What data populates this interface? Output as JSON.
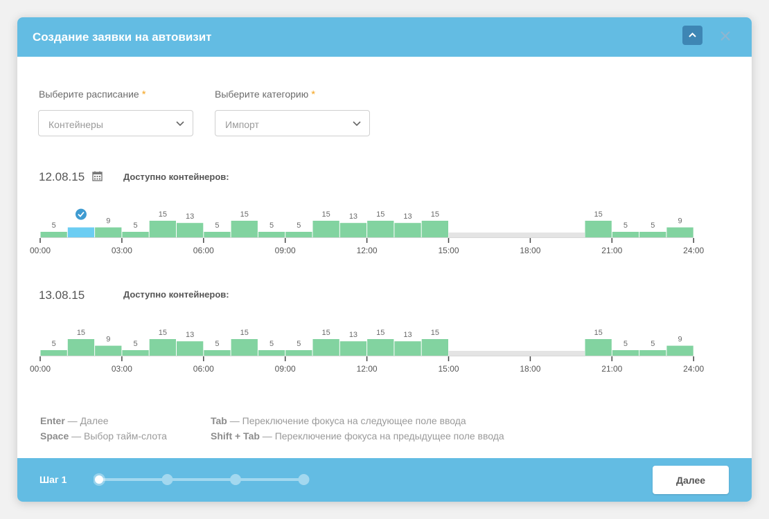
{
  "header": {
    "title": "Создание заявки на автовизит"
  },
  "form": {
    "schedule": {
      "label": "Выберите расписание",
      "required_mark": "*",
      "value": "Контейнеры"
    },
    "category": {
      "label": "Выберите категорию",
      "required_mark": "*",
      "value": "Импорт"
    }
  },
  "days": [
    {
      "date": "12.08.15",
      "available_label": "Доступно контейнеров:",
      "show_calendar": true
    },
    {
      "date": "13.08.15",
      "available_label": "Доступно контейнеров:",
      "show_calendar": false
    }
  ],
  "chart_data": [
    {
      "type": "bar",
      "title": "12.08.15",
      "xlabel": "Доступно контейнеров:",
      "x_ticks": [
        "00:00",
        "03:00",
        "06:00",
        "09:00",
        "12:00",
        "15:00",
        "18:00",
        "21:00",
        "24:00"
      ],
      "slot_hours": 1,
      "values": [
        5,
        9,
        9,
        5,
        15,
        13,
        5,
        15,
        5,
        5,
        15,
        13,
        15,
        13,
        15,
        null,
        null,
        null,
        null,
        null,
        15,
        5,
        5,
        9
      ],
      "unavailable_range": [
        15,
        20
      ],
      "selected_slot": 1,
      "selected_label": ""
    },
    {
      "type": "bar",
      "title": "13.08.15",
      "xlabel": "Доступно контейнеров:",
      "x_ticks": [
        "00:00",
        "03:00",
        "06:00",
        "09:00",
        "12:00",
        "15:00",
        "18:00",
        "21:00",
        "24:00"
      ],
      "slot_hours": 1,
      "values": [
        5,
        15,
        9,
        5,
        15,
        13,
        5,
        15,
        5,
        5,
        15,
        13,
        15,
        13,
        15,
        null,
        null,
        null,
        null,
        null,
        15,
        5,
        5,
        9
      ],
      "unavailable_range": [
        15,
        20
      ],
      "selected_slot": null
    }
  ],
  "hints": {
    "left": [
      {
        "key": "Enter",
        "text": " — Далее"
      },
      {
        "key": "Space",
        "text": " — Выбор тайм-слота"
      }
    ],
    "right": [
      {
        "key": "Tab",
        "text": " — Переключение фокуса на следующее поле ввода"
      },
      {
        "key": "Shift + Tab",
        "text": " — Переключение фокуса на предыдущее поле ввода"
      }
    ]
  },
  "footer": {
    "step_label": "Шаг 1",
    "steps_total": 4,
    "current_step": 1,
    "next_label": "Далее"
  },
  "colors": {
    "accent": "#63bce3",
    "bar": "#82d3a0",
    "bar_selected": "#6ccdf2",
    "required": "#f5a623"
  }
}
